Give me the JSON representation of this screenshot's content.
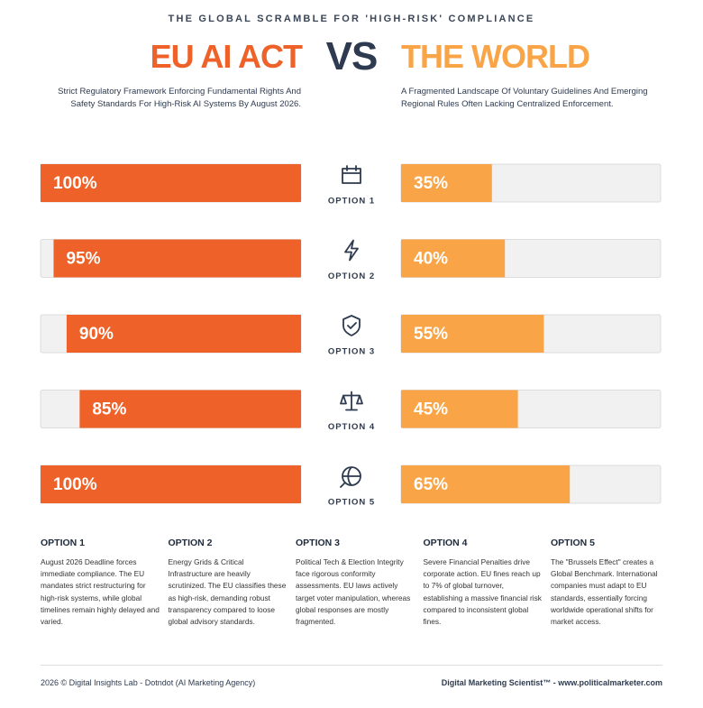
{
  "chart_data": {
    "type": "butterfly",
    "title": "THE GLOBAL SCRAMBLE FOR 'HIGH-RISK' COMPLIANCE",
    "versus": "VS",
    "categories": [
      "OPTION 1",
      "OPTION 2",
      "OPTION 3",
      "OPTION 4",
      "OPTION 5"
    ],
    "xlim": [
      0,
      100
    ],
    "series": [
      {
        "name": "EU AI ACT",
        "color": "#ee6229",
        "description": "Strict Regulatory Framework Enforcing Fundamental Rights And Safety Standards For High-Risk AI Systems By August 2026.",
        "values": [
          100,
          95,
          90,
          85,
          100
        ],
        "value_labels": [
          "100%",
          "95%",
          "90%",
          "85%",
          "100%"
        ]
      },
      {
        "name": "THE WORLD",
        "color": "#f9a447",
        "description": "A Fragmented Landscape Of Voluntary Guidelines And Emerging Regional Rules Often Lacking Centralized Enforcement.",
        "values": [
          35,
          40,
          55,
          45,
          65
        ],
        "value_labels": [
          "35%",
          "40%",
          "55%",
          "45%",
          "65%"
        ]
      }
    ]
  },
  "notes": [
    {
      "title": "OPTION 1",
      "text": "August 2026 Deadline forces immediate compliance. The EU mandates strict restructuring for high-risk systems, while global timelines remain highly delayed and varied."
    },
    {
      "title": "OPTION 2",
      "text": "Energy Grids & Critical Infrastructure are heavily scrutinized. The EU classifies these as high-risk, demanding robust transparency compared to loose global advisory standards."
    },
    {
      "title": "OPTION 3",
      "text": "Political Tech & Election Integrity face rigorous conformity assessments. EU laws actively target voter manipulation, whereas global responses are mostly fragmented."
    },
    {
      "title": "OPTION 4",
      "text": "Severe Financial Penalties drive corporate action. EU fines reach up to 7% of global turnover, establishing a massive financial risk compared to inconsistent global fines."
    },
    {
      "title": "OPTION 5",
      "text": "The \"Brussels Effect\" creates a Global Benchmark. International companies must adapt to EU standards, essentially forcing worldwide operational shifts for market access."
    }
  ],
  "footer": {
    "left": "2026 © Digital Insights Lab - Dotndot (AI Marketing Agency)",
    "right": "Digital Marketing Scientist™ - www.politicalmarketer.com"
  }
}
